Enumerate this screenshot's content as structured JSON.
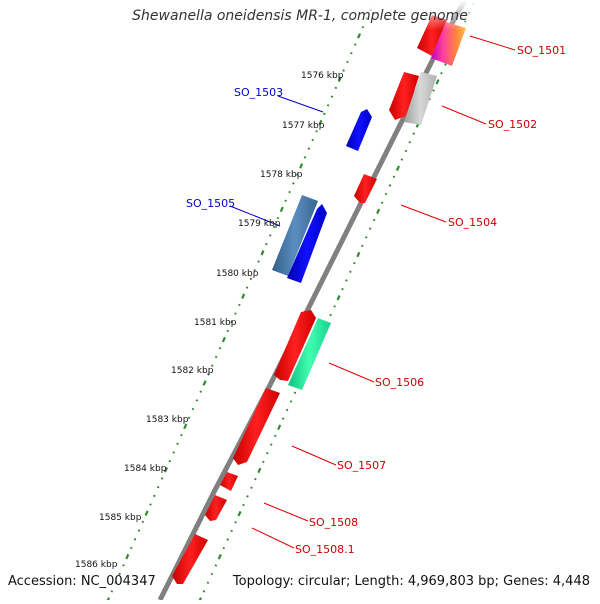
{
  "title": "Shewanella oneidensis MR-1, complete genome",
  "accession": "Accession: NC_004347",
  "summary": "Topology: circular; Length: 4,969,803 bp; Genes: 4,448",
  "colors": {
    "backbone": "#808080",
    "tick": "#2e8b2e",
    "cds_forward": "#ff0000",
    "cds_reverse": "#0000ff",
    "label_forward": "#cc0000",
    "label_reverse": "#0000cc"
  },
  "ticks": [
    {
      "label": "1576 kbp"
    },
    {
      "label": "1577 kbp"
    },
    {
      "label": "1578 kbp"
    },
    {
      "label": "1579 kbp"
    },
    {
      "label": "1580 kbp"
    },
    {
      "label": "1581 kbp"
    },
    {
      "label": "1582 kbp"
    },
    {
      "label": "1583 kbp"
    },
    {
      "label": "1584 kbp"
    },
    {
      "label": "1585 kbp"
    },
    {
      "label": "1586 kbp"
    }
  ],
  "gene_labels": [
    {
      "name": "SO_1501",
      "strand": "forward"
    },
    {
      "name": "SO_1502",
      "strand": "forward"
    },
    {
      "name": "SO_1503",
      "strand": "reverse"
    },
    {
      "name": "SO_1504",
      "strand": "forward"
    },
    {
      "name": "SO_1505",
      "strand": "reverse"
    },
    {
      "name": "SO_1506",
      "strand": "forward"
    },
    {
      "name": "SO_1507",
      "strand": "forward"
    },
    {
      "name": "SO_1508",
      "strand": "forward"
    },
    {
      "name": "SO_1508.1",
      "strand": "forward"
    }
  ]
}
